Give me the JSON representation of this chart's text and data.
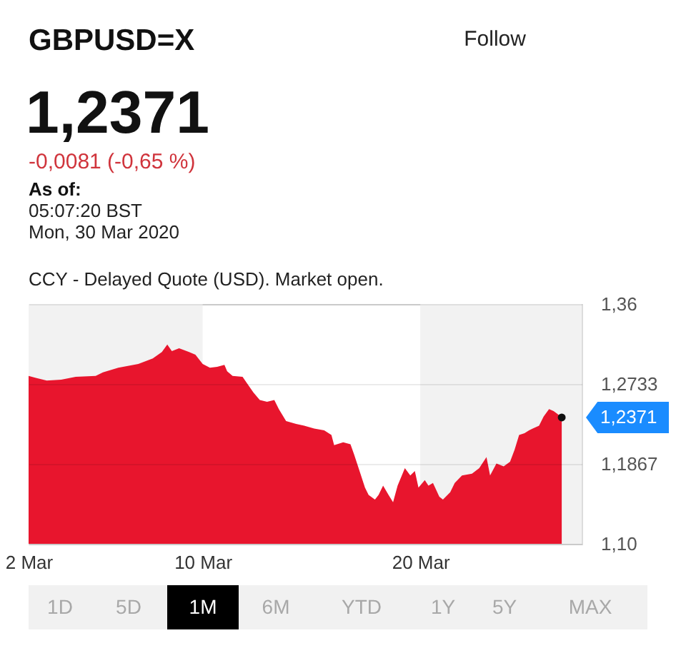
{
  "chart_data": {
    "type": "area",
    "title": "GBPUSD=X",
    "subtitle": "1,2371",
    "x": [
      "2020-03-02T00:00",
      "2020-03-02T08:00",
      "2020-03-02T20:00",
      "2020-03-03T12:00",
      "2020-03-04T04:00",
      "2020-03-05T02:00",
      "2020-03-05T10:00",
      "2020-03-06T03:00",
      "2020-03-07T01:00",
      "2020-03-07T17:00",
      "2020-03-08T03:00",
      "2020-03-08T09:00",
      "2020-03-08T14:00",
      "2020-03-08T22:00",
      "2020-03-09T09:00",
      "2020-03-09T16:00",
      "2020-03-10T00:00",
      "2020-03-10T08:00",
      "2020-03-10T16:00",
      "2020-03-11T00:00",
      "2020-03-11T03:00",
      "2020-03-11T09:00",
      "2020-03-11T20:00",
      "2020-03-12T01:00",
      "2020-03-12T08:00",
      "2020-03-12T15:00",
      "2020-03-12T23:00",
      "2020-03-13T07:00",
      "2020-03-13T12:00",
      "2020-03-13T20:00",
      "2020-03-14T07:00",
      "2020-03-14T16:00",
      "2020-03-15T03:00",
      "2020-03-15T14:00",
      "2020-03-15T22:00",
      "2020-03-16T01:00",
      "2020-03-16T11:00",
      "2020-03-16T19:00",
      "2020-03-16T23:00",
      "2020-03-17T06:00",
      "2020-03-17T11:00",
      "2020-03-17T15:00",
      "2020-03-17T22:00",
      "2020-03-18T02:00",
      "2020-03-18T07:00",
      "2020-03-18T13:00",
      "2020-03-18T18:00",
      "2020-03-18T23:00",
      "2020-03-19T07:00",
      "2020-03-19T13:00",
      "2020-03-19T18:00",
      "2020-03-19T22:00",
      "2020-03-20T05:00",
      "2020-03-20T09:00",
      "2020-03-20T14:00",
      "2020-03-20T21:00",
      "2020-03-21T01:00",
      "2020-03-21T09:00",
      "2020-03-21T14:00",
      "2020-03-21T22:00",
      "2020-03-22T09:00",
      "2020-03-22T17:00",
      "2020-03-23T01:00",
      "2020-03-23T05:00",
      "2020-03-23T12:00",
      "2020-03-23T20:00",
      "2020-03-24T03:00",
      "2020-03-24T08:00",
      "2020-03-24T13:00",
      "2020-03-24T19:00",
      "2020-03-25T00:00",
      "2020-03-25T04:00",
      "2020-03-25T11:00",
      "2020-03-25T16:00",
      "2020-03-25T22:00",
      "2020-03-26T03:00",
      "2020-03-26T07:00",
      "2020-03-26T12:00"
    ],
    "series": [
      {
        "color": "#e8152d",
        "values": [
          1.282,
          1.28,
          1.277,
          1.278,
          1.281,
          1.282,
          1.286,
          1.291,
          1.295,
          1.301,
          1.308,
          1.316,
          1.309,
          1.312,
          1.308,
          1.305,
          1.295,
          1.291,
          1.292,
          1.294,
          1.287,
          1.282,
          1.281,
          1.274,
          1.264,
          1.256,
          1.254,
          1.256,
          1.246,
          1.233,
          1.23,
          1.228,
          1.225,
          1.223,
          1.218,
          1.207,
          1.21,
          1.208,
          1.197,
          1.176,
          1.161,
          1.153,
          1.148,
          1.153,
          1.163,
          1.153,
          1.145,
          1.163,
          1.182,
          1.174,
          1.179,
          1.161,
          1.169,
          1.163,
          1.166,
          1.151,
          1.148,
          1.156,
          1.166,
          1.174,
          1.176,
          1.182,
          1.194,
          1.174,
          1.187,
          1.184,
          1.189,
          1.202,
          1.218,
          1.22,
          1.223,
          1.225,
          1.228,
          1.238,
          1.246,
          1.244,
          1.241,
          1.237
        ]
      }
    ],
    "xlim": [
      "2020-03-02T00:00",
      "2020-03-27T10:00"
    ],
    "xticks": [
      {
        "value": "2020-03-02",
        "label": "2 Mar"
      },
      {
        "value": "2020-03-10",
        "label": "10 Mar"
      },
      {
        "value": "2020-03-20",
        "label": "20 Mar"
      }
    ],
    "ylim": [
      1.1,
      1.36
    ],
    "yticks": [
      {
        "value": 1.1,
        "label": "1,10"
      },
      {
        "value": 1.1867,
        "label": "1,1867"
      },
      {
        "value": 1.2733,
        "label": "1,2733"
      },
      {
        "value": 1.36,
        "label": "1,36"
      }
    ],
    "grid": "y",
    "bands": [
      {
        "axis": "x",
        "from": "2020-03-02",
        "to": "2020-03-10",
        "color": "#f2f2f2"
      },
      {
        "axis": "x",
        "from": "2020-03-20",
        "to": "2020-03-27T10:00",
        "color": "#f2f2f2"
      }
    ],
    "annotations": [
      "-0,0081 (-0,65 %)",
      "As of:",
      "05:07:20 BST",
      "Mon, 30 Mar 2020",
      "CCY - Delayed Quote (USD). Market open.",
      "Follow",
      "1D",
      "5D",
      "1M",
      "6M",
      "YTD",
      "1Y",
      "5Y",
      "MAX",
      {
        "text": "1,2371",
        "x": "2020-03-26T12:00",
        "y": 1.237
      }
    ]
  }
}
